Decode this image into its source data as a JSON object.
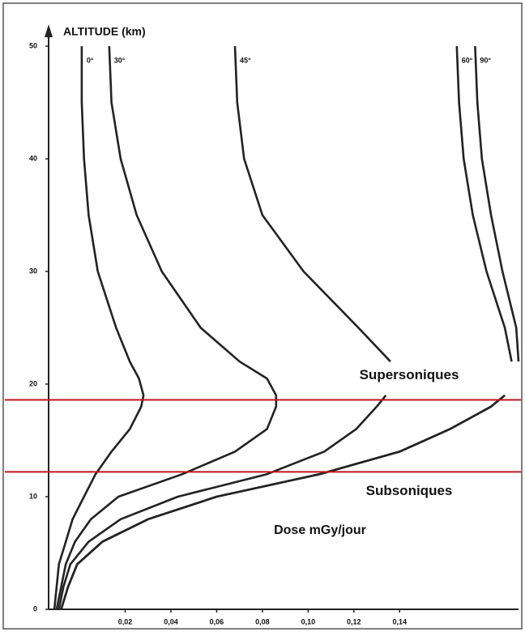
{
  "chart_data": {
    "type": "line",
    "title": "ALTITUDE (km)",
    "xlabel": "Dose mGy/jour",
    "y": [
      0,
      2,
      4,
      6,
      8,
      10,
      12,
      14,
      16,
      18,
      19,
      20.5,
      22,
      25,
      30,
      35,
      40,
      45,
      50
    ],
    "ylim": [
      0,
      50
    ],
    "yticks": [
      0,
      10,
      20,
      30,
      40,
      50
    ],
    "xlim": [
      -0.0135,
      0.192
    ],
    "xticks": [
      {
        "value": 0.02,
        "label": "0,02"
      },
      {
        "value": 0.04,
        "label": "0,04"
      },
      {
        "value": 0.06,
        "label": "0,06"
      },
      {
        "value": 0.08,
        "label": "0,08"
      },
      {
        "value": 0.1,
        "label": "0,10"
      },
      {
        "value": 0.12,
        "label": "0,12"
      },
      {
        "value": 0.14,
        "label": "0,14"
      }
    ],
    "color": "#222222",
    "series": [
      {
        "name": "0°",
        "values": [
          -0.011,
          -0.01,
          -0.009,
          -0.006,
          -0.003,
          0.002,
          0.007,
          0.014,
          0.022,
          0.027,
          0.028,
          0.026,
          0.022,
          0.016,
          0.008,
          0.004,
          0.002,
          0.001,
          0.001
        ]
      },
      {
        "name": "30°",
        "values": [
          -0.01,
          -0.008,
          -0.006,
          -0.002,
          0.005,
          0.017,
          0.045,
          0.068,
          0.082,
          0.086,
          0.086,
          0.082,
          0.07,
          0.053,
          0.036,
          0.025,
          0.018,
          0.014,
          0.013
        ]
      },
      {
        "name": "45°",
        "values": [
          -0.009,
          -0.007,
          -0.004,
          0.004,
          0.018,
          0.043,
          0.082,
          0.107,
          0.121,
          0.13,
          0.134,
          null,
          0.136,
          0.122,
          0.098,
          0.08,
          0.072,
          0.069,
          0.068
        ]
      },
      {
        "name": "60°",
        "values": [
          -0.008,
          -0.005,
          -0.001,
          0.01,
          0.03,
          0.06,
          0.105,
          0.14,
          0.162,
          0.18,
          0.186,
          null,
          0.189,
          0.186,
          0.178,
          0.172,
          0.168,
          0.166,
          0.165
        ]
      },
      {
        "name": "90°",
        "values": [
          -0.008,
          -0.005,
          -0.001,
          0.01,
          0.03,
          0.06,
          0.105,
          0.14,
          0.162,
          0.18,
          0.186,
          null,
          0.192,
          0.191,
          0.185,
          0.18,
          0.176,
          0.174,
          0.173
        ]
      }
    ],
    "annotations": [
      {
        "text": "Supersoniques",
        "value": 18.6,
        "color": "#c0161c"
      },
      {
        "text": "Subsoniques",
        "value": 12.2,
        "color": "#c0161c"
      }
    ]
  }
}
